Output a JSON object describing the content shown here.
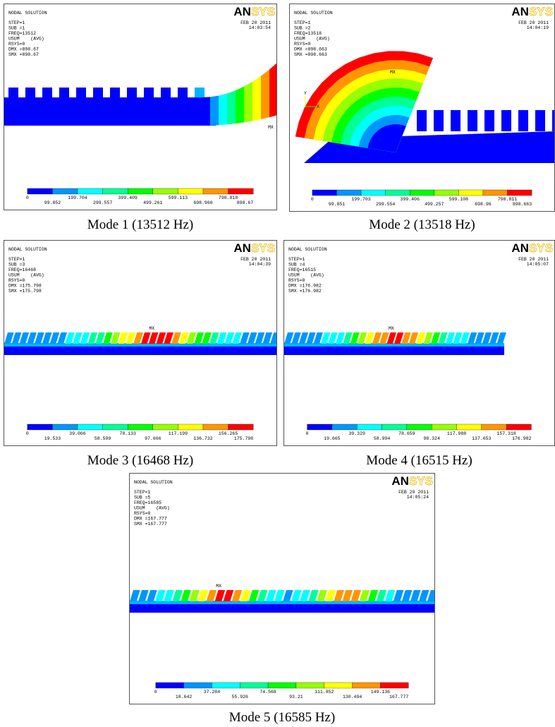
{
  "panels": [
    {
      "title": "NODAL SOLUTION",
      "info": [
        "STEP=1",
        "SUB =1",
        "FREQ=13512",
        "USUM    (AVG)",
        "RSYS=0",
        "DMX =898.67",
        "SMX =898.67"
      ],
      "date": "FEB 20 2011",
      "time": "14:03:54",
      "logo": [
        "AN",
        "SYS"
      ],
      "max_label": "MX",
      "legend_top": [
        "0",
        "199.704",
        "399.409",
        "599.113",
        "798.818"
      ],
      "legend_bottom": [
        "99.852",
        "299.557",
        "499.261",
        "698.966",
        "898.67"
      ],
      "caption": "Mode 1 (13512 Hz)"
    },
    {
      "title": "NODAL SOLUTION",
      "info": [
        "STEP=1",
        "SUB =2",
        "FREQ=13518",
        "USUM    (AVG)",
        "RSYS=0",
        "DMX =898.663",
        "SMX =898.663"
      ],
      "date": "FEB 20 2011",
      "time": "14:04:19",
      "logo": [
        "AN",
        "SYS"
      ],
      "max_label": "MX",
      "triad": [
        "Y",
        "X"
      ],
      "legend_top": [
        "0",
        "199.703",
        "399.406",
        "599.108",
        "798.811"
      ],
      "legend_bottom": [
        "99.851",
        "299.554",
        "499.257",
        "698.96",
        "898.663"
      ],
      "caption": "Mode 2 (13518 Hz)"
    },
    {
      "title": "NODAL SOLUTION",
      "info": [
        "STEP=1",
        "SUB =3",
        "FREQ=16468",
        "USUM    (AVG)",
        "RSYS=0",
        "DMX =175.798",
        "SMX =175.798"
      ],
      "date": "FEB 20 2011",
      "time": "14:04:39",
      "logo": [
        "AN",
        "SYS"
      ],
      "max_label": "MX",
      "legend_top": [
        "0",
        "39.066",
        "78.133",
        "117.199",
        "156.265"
      ],
      "legend_bottom": [
        "19.533",
        "58.599",
        "97.666",
        "136.732",
        "175.798"
      ],
      "caption": "Mode 3 (16468 Hz)"
    },
    {
      "title": "NODAL SOLUTION",
      "info": [
        "STEP=1",
        "SUB =4",
        "FREQ=16515",
        "USUM    (AVG)",
        "RSYS=0",
        "DMX =176.982",
        "SMX =176.982"
      ],
      "date": "FEB 20 2011",
      "time": "14:05:07",
      "logo": [
        "AN",
        "SYS"
      ],
      "max_label": "MX",
      "legend_top": [
        "0",
        "39.329",
        "78.659",
        "117.988",
        "157.318"
      ],
      "legend_bottom": [
        "19.665",
        "58.994",
        "98.324",
        "137.653",
        "176.982"
      ],
      "caption": "Mode 4 (16515 Hz)"
    },
    {
      "title": "NODAL SOLUTION",
      "info": [
        "STEP=1",
        "SUB =5",
        "FREQ=16585",
        "USUM    (AVG)",
        "RSYS=0",
        "DMX =167.777",
        "SMX =167.777"
      ],
      "date": "FEB 20 2011",
      "time": "14:05:24",
      "logo": [
        "AN",
        "SYS"
      ],
      "max_label": "MX",
      "legend_top": [
        "0",
        "37.284",
        "74.568",
        "111.852",
        "149.136"
      ],
      "legend_bottom": [
        "18.642",
        "55.926",
        "93.21",
        "130.494",
        "167.777"
      ],
      "caption": "Mode 5 (16585 Hz)"
    }
  ]
}
